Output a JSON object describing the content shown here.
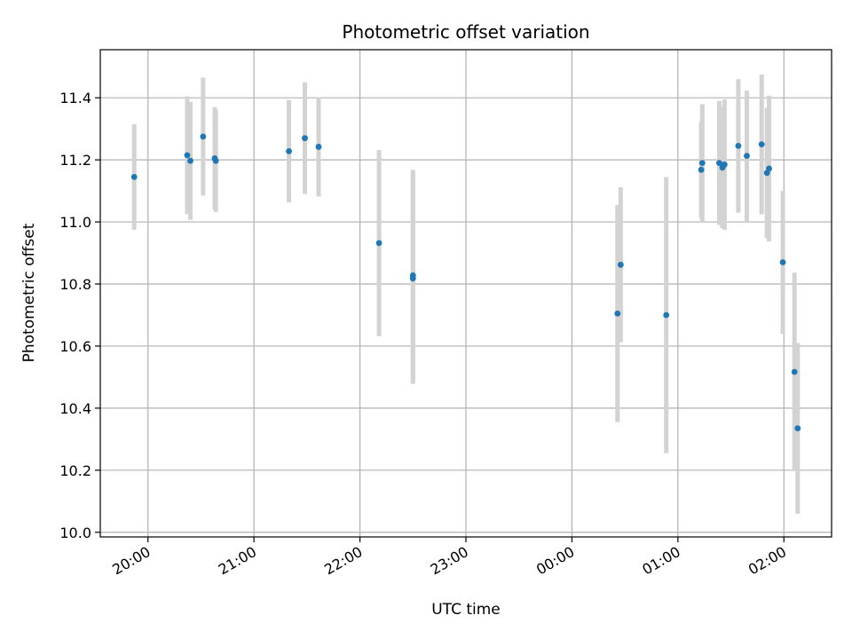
{
  "chart_data": {
    "type": "scatter",
    "title": "Photometric offset variation",
    "xlabel": "UTC time",
    "ylabel": "Photometric offset",
    "x_unit": "hours since 00:00 UTC (previous-evening times negative)",
    "xlim": [
      -4.45,
      2.45
    ],
    "ylim": [
      9.985,
      11.555
    ],
    "x_ticks": [
      {
        "value": -4,
        "label": "20:00"
      },
      {
        "value": -3,
        "label": "21:00"
      },
      {
        "value": -2,
        "label": "22:00"
      },
      {
        "value": -1,
        "label": "23:00"
      },
      {
        "value": 0,
        "label": "00:00"
      },
      {
        "value": 1,
        "label": "01:00"
      },
      {
        "value": 2,
        "label": "02:00"
      }
    ],
    "y_ticks": [
      {
        "value": 10.0,
        "label": "10.0"
      },
      {
        "value": 10.2,
        "label": "10.2"
      },
      {
        "value": 10.4,
        "label": "10.4"
      },
      {
        "value": 10.6,
        "label": "10.6"
      },
      {
        "value": 10.8,
        "label": "10.8"
      },
      {
        "value": 11.0,
        "label": "11.0"
      },
      {
        "value": 11.2,
        "label": "11.2"
      },
      {
        "value": 11.4,
        "label": "11.4"
      }
    ],
    "grid": true,
    "legend": "none",
    "point_color": "#1f77b4",
    "errorbar_color": "#d3d3d3",
    "points": [
      {
        "time": "19:52",
        "x": -4.13,
        "y": 11.145,
        "err": 0.17
      },
      {
        "time": "20:22",
        "x": -3.63,
        "y": 11.215,
        "err": 0.19
      },
      {
        "time": "20:24",
        "x": -3.6,
        "y": 11.197,
        "err": 0.19
      },
      {
        "time": "20:31",
        "x": -3.48,
        "y": 11.275,
        "err": 0.19
      },
      {
        "time": "20:38",
        "x": -3.37,
        "y": 11.205,
        "err": 0.165
      },
      {
        "time": "20:39",
        "x": -3.36,
        "y": 11.197,
        "err": 0.165
      },
      {
        "time": "21:20",
        "x": -2.67,
        "y": 11.228,
        "err": 0.165
      },
      {
        "time": "21:29",
        "x": -2.52,
        "y": 11.27,
        "err": 0.18
      },
      {
        "time": "21:37",
        "x": -2.39,
        "y": 11.242,
        "err": 0.16
      },
      {
        "time": "22:11",
        "x": -1.82,
        "y": 10.932,
        "err": 0.3
      },
      {
        "time": "22:30",
        "x": -1.5,
        "y": 10.828,
        "err": 0.34
      },
      {
        "time": "22:30",
        "x": -1.5,
        "y": 10.818,
        "err": 0.34
      },
      {
        "time": "00:26",
        "x": 0.43,
        "y": 10.705,
        "err": 0.35
      },
      {
        "time": "00:28",
        "x": 0.46,
        "y": 10.862,
        "err": 0.25
      },
      {
        "time": "00:54",
        "x": 0.89,
        "y": 10.7,
        "err": 0.445
      },
      {
        "time": "01:13",
        "x": 1.22,
        "y": 11.168,
        "err": 0.155
      },
      {
        "time": "01:14",
        "x": 1.23,
        "y": 11.19,
        "err": 0.19
      },
      {
        "time": "01:24",
        "x": 1.39,
        "y": 11.19,
        "err": 0.2
      },
      {
        "time": "01:25",
        "x": 1.42,
        "y": 11.175,
        "err": 0.195
      },
      {
        "time": "01:26",
        "x": 1.44,
        "y": 11.185,
        "err": 0.21
      },
      {
        "time": "01:34",
        "x": 1.57,
        "y": 11.245,
        "err": 0.215
      },
      {
        "time": "01:39",
        "x": 1.65,
        "y": 11.213,
        "err": 0.21
      },
      {
        "time": "01:47",
        "x": 1.79,
        "y": 11.25,
        "err": 0.225
      },
      {
        "time": "01:51",
        "x": 1.84,
        "y": 11.158,
        "err": 0.21
      },
      {
        "time": "01:52",
        "x": 1.86,
        "y": 11.172,
        "err": 0.235
      },
      {
        "time": "02:00",
        "x": 1.99,
        "y": 10.87,
        "err": 0.23
      },
      {
        "time": "02:06",
        "x": 2.1,
        "y": 10.517,
        "err": 0.32
      },
      {
        "time": "02:08",
        "x": 2.13,
        "y": 10.335,
        "err": 0.275
      }
    ]
  }
}
